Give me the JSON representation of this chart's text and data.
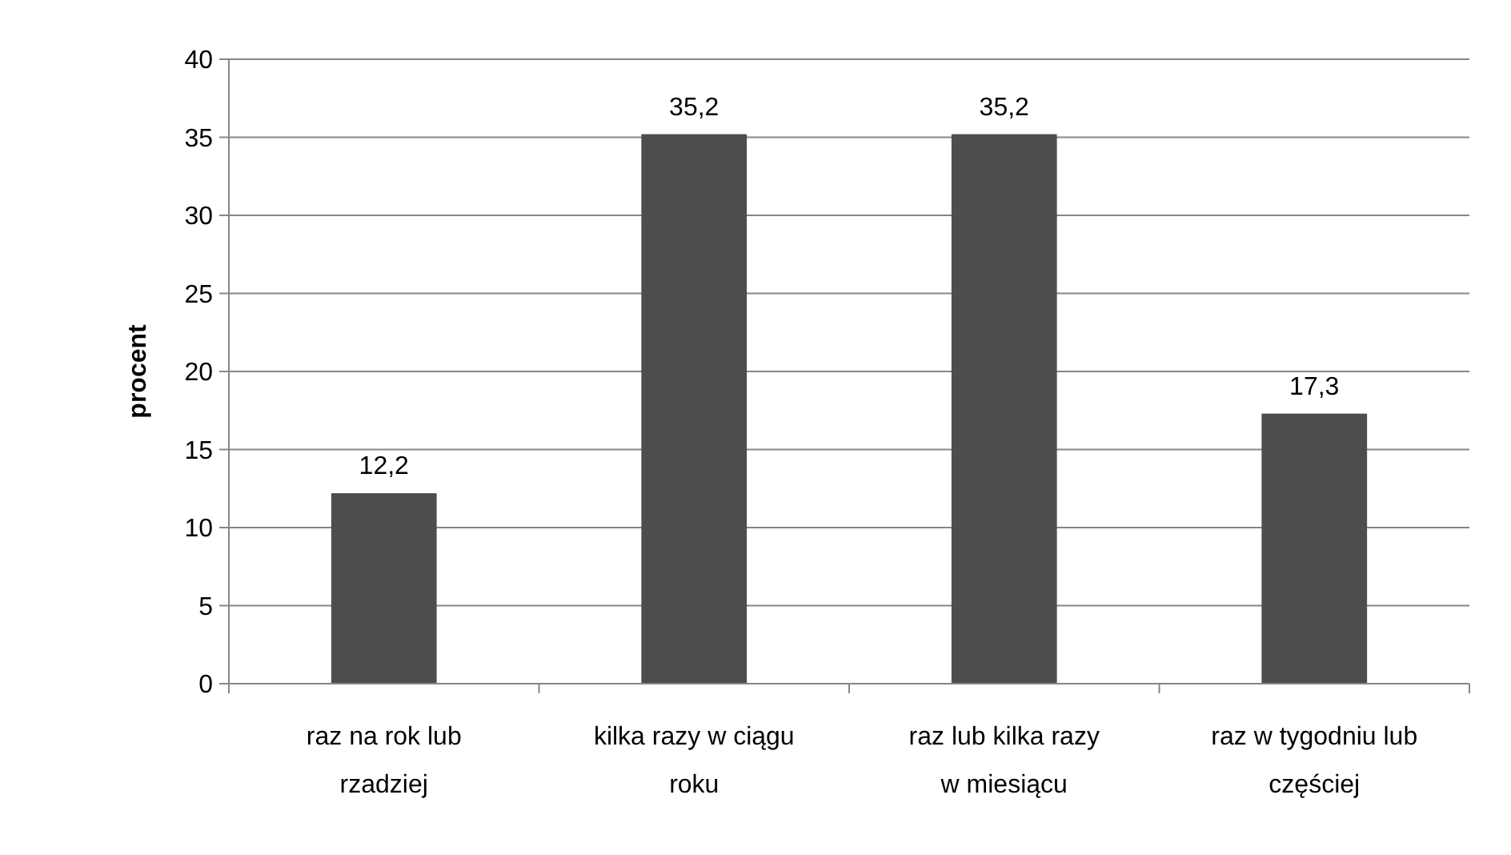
{
  "chart_data": {
    "type": "bar",
    "ylabel": "procent",
    "categories": [
      "raz na rok lub rzadziej",
      "kilka razy w ciągu roku",
      "raz lub kilka razy w miesiącu",
      "raz w tygodniu lub częściej"
    ],
    "values": [
      12.2,
      35.2,
      35.2,
      17.3
    ],
    "value_labels": [
      "12,2",
      "35,2",
      "35,2",
      "17,3"
    ],
    "color": "#4d4d4d",
    "ylim": [
      0,
      40
    ],
    "yticks": [
      0,
      5,
      10,
      15,
      20,
      25,
      30,
      35,
      40
    ],
    "grid": "y"
  }
}
